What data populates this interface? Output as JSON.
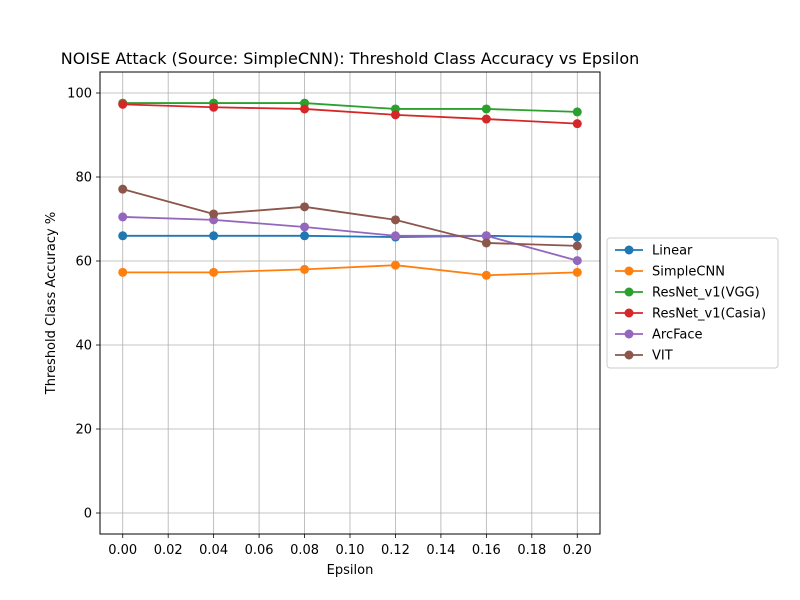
{
  "chart_data": {
    "type": "line",
    "title": "NOISE Attack (Source: SimpleCNN): Threshold Class Accuracy vs Epsilon",
    "xlabel": "Epsilon",
    "ylabel": "Threshold Class Accuracy %",
    "xlim": [
      -0.01,
      0.21
    ],
    "ylim": [
      -5,
      105
    ],
    "xticks": [
      "0.00",
      "0.02",
      "0.04",
      "0.06",
      "0.08",
      "0.10",
      "0.12",
      "0.14",
      "0.16",
      "0.18",
      "0.20"
    ],
    "yticks": [
      "0",
      "20",
      "40",
      "60",
      "80",
      "100"
    ],
    "grid": true,
    "legend_position": "center-right outside",
    "x": [
      0.0,
      0.04,
      0.08,
      0.12,
      0.16,
      0.2
    ],
    "series": [
      {
        "name": "Linear",
        "color": "#1f77b4",
        "values": [
          66.0,
          66.0,
          66.0,
          65.7,
          66.0,
          65.7
        ]
      },
      {
        "name": "SimpleCNN",
        "color": "#ff7f0e",
        "values": [
          57.3,
          57.3,
          58.0,
          59.0,
          56.6,
          57.3
        ]
      },
      {
        "name": "ResNet_v1(VGG)",
        "color": "#2ca02c",
        "values": [
          97.6,
          97.6,
          97.6,
          96.2,
          96.2,
          95.5
        ]
      },
      {
        "name": "ResNet_v1(Casia)",
        "color": "#d62728",
        "values": [
          97.3,
          96.6,
          96.2,
          94.8,
          93.8,
          92.7
        ]
      },
      {
        "name": "ArcFace",
        "color": "#9467bd",
        "values": [
          70.5,
          69.8,
          68.1,
          66.0,
          66.0,
          60.1
        ]
      },
      {
        "name": "VIT",
        "color": "#8c564b",
        "values": [
          77.1,
          71.2,
          72.9,
          69.8,
          64.3,
          63.6
        ]
      }
    ]
  }
}
